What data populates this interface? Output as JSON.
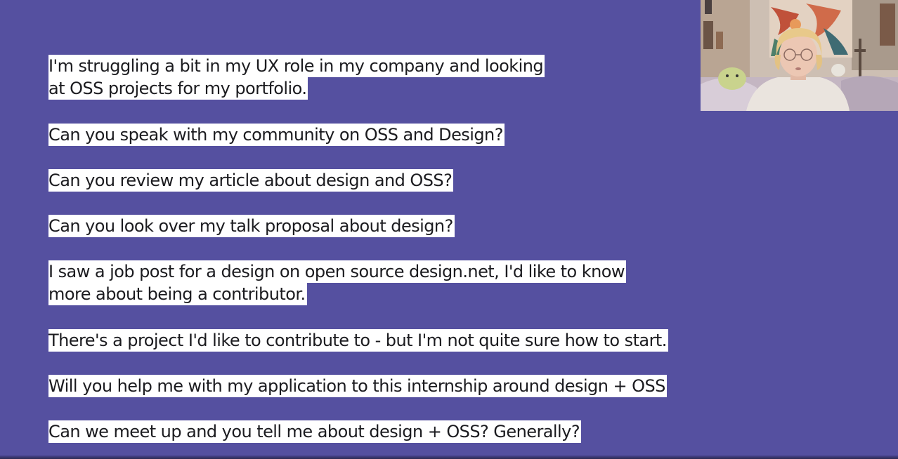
{
  "slide": {
    "background": "#5550a0",
    "highlight_color": "#ffffff",
    "questions": [
      {
        "lines": [
          "I'm struggling a bit in my UX role in my company and looking",
          "at OSS projects for my portfolio."
        ]
      },
      {
        "lines": [
          "Can you speak with my community on OSS and Design?"
        ]
      },
      {
        "lines": [
          "Can you review my article about design and OSS?"
        ]
      },
      {
        "lines": [
          "Can you look over my talk proposal about design?"
        ]
      },
      {
        "lines": [
          "I saw a job post for a design on open source design.net, I'd like to know",
          "more about being a contributor."
        ]
      },
      {
        "lines": [
          "There's a project I'd like to contribute to - but I'm not quite sure how to start."
        ]
      },
      {
        "lines": [
          "Will you help me with my application to this internship around design + OSS"
        ]
      },
      {
        "lines": [
          "Can we meet up and you tell me about design + OSS? Generally?"
        ]
      }
    ]
  },
  "webcam": {
    "icon": "presenter-video-icon"
  }
}
